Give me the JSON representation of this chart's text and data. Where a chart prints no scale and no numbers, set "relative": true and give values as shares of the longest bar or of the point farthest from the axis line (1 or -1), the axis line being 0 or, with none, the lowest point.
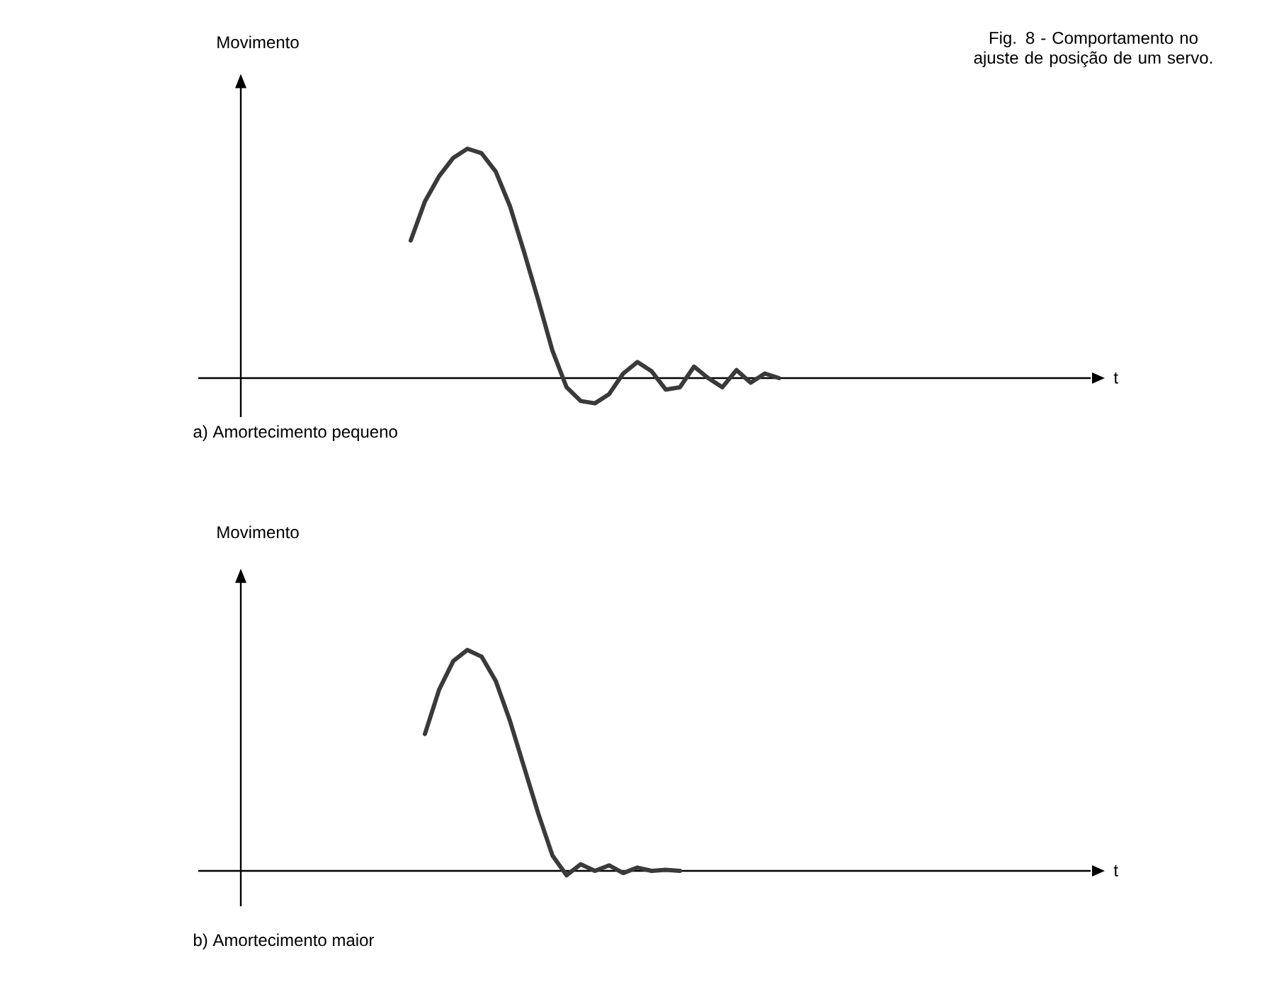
{
  "chart_data": [
    {
      "type": "line",
      "title": "Fig. 8 - Comportamento no ajuste de posição de um servo.",
      "ylabel": "Movimento",
      "xlabel": "t",
      "annotations": [
        "a) Amortecimento pequeno"
      ],
      "relative": true,
      "tick_labels": false,
      "color": "#3a3a3a",
      "line_style": "solid",
      "categories": [
        null,
        null,
        null,
        null,
        null,
        null,
        null,
        null,
        null,
        null,
        null,
        null,
        null,
        null,
        null,
        null,
        null,
        null,
        null,
        null,
        null,
        null,
        null,
        null,
        null,
        null,
        null,
        null,
        null,
        null,
        null,
        null,
        null,
        null,
        null,
        null,
        null,
        null,
        null,
        null,
        null,
        null,
        null,
        null,
        null,
        null,
        null,
        null,
        null,
        null,
        null,
        null,
        null,
        null,
        null,
        null,
        null,
        null,
        null,
        null,
        null
      ],
      "values": [
        null,
        null,
        null,
        null,
        null,
        null,
        null,
        null,
        null,
        null,
        null,
        null,
        0.6,
        0.77,
        0.88,
        0.96,
        1.0,
        0.98,
        0.9,
        0.75,
        0.55,
        0.34,
        0.12,
        -0.04,
        -0.1,
        -0.11,
        -0.07,
        0.02,
        0.07,
        0.03,
        -0.05,
        -0.04,
        0.05,
        0.0,
        -0.04,
        0.035,
        -0.02,
        0.02,
        0.0,
        null,
        null,
        null,
        null,
        null,
        null,
        null,
        null,
        null,
        null,
        null,
        null,
        null,
        null,
        null,
        null,
        null,
        null,
        null,
        null,
        null,
        null
      ]
    },
    {
      "type": "line",
      "ylabel": "Movimento",
      "xlabel": "t",
      "annotations": [
        "b) Amortecimento maior"
      ],
      "relative": true,
      "tick_labels": false,
      "color": "#3a3a3a",
      "line_style": "solid",
      "categories": [
        null,
        null,
        null,
        null,
        null,
        null,
        null,
        null,
        null,
        null,
        null,
        null,
        null,
        null,
        null,
        null,
        null,
        null,
        null,
        null,
        null,
        null,
        null,
        null,
        null,
        null,
        null,
        null,
        null,
        null,
        null,
        null,
        null,
        null,
        null,
        null,
        null,
        null,
        null,
        null,
        null,
        null,
        null,
        null,
        null,
        null,
        null,
        null,
        null,
        null,
        null,
        null,
        null,
        null,
        null,
        null,
        null,
        null,
        null,
        null,
        null
      ],
      "values": [
        null,
        null,
        null,
        null,
        null,
        null,
        null,
        null,
        null,
        null,
        null,
        null,
        null,
        0.62,
        0.82,
        0.95,
        1.0,
        0.97,
        0.86,
        0.68,
        0.47,
        0.26,
        0.07,
        -0.02,
        0.03,
        0.0,
        0.025,
        -0.01,
        0.015,
        0.0,
        0.005,
        0.0,
        null,
        null,
        null,
        null,
        null,
        null,
        null,
        null,
        null,
        null,
        null,
        null,
        null,
        null,
        null,
        null,
        null,
        null,
        null,
        null,
        null,
        null,
        null,
        null,
        null,
        null,
        null,
        null,
        null
      ]
    }
  ]
}
